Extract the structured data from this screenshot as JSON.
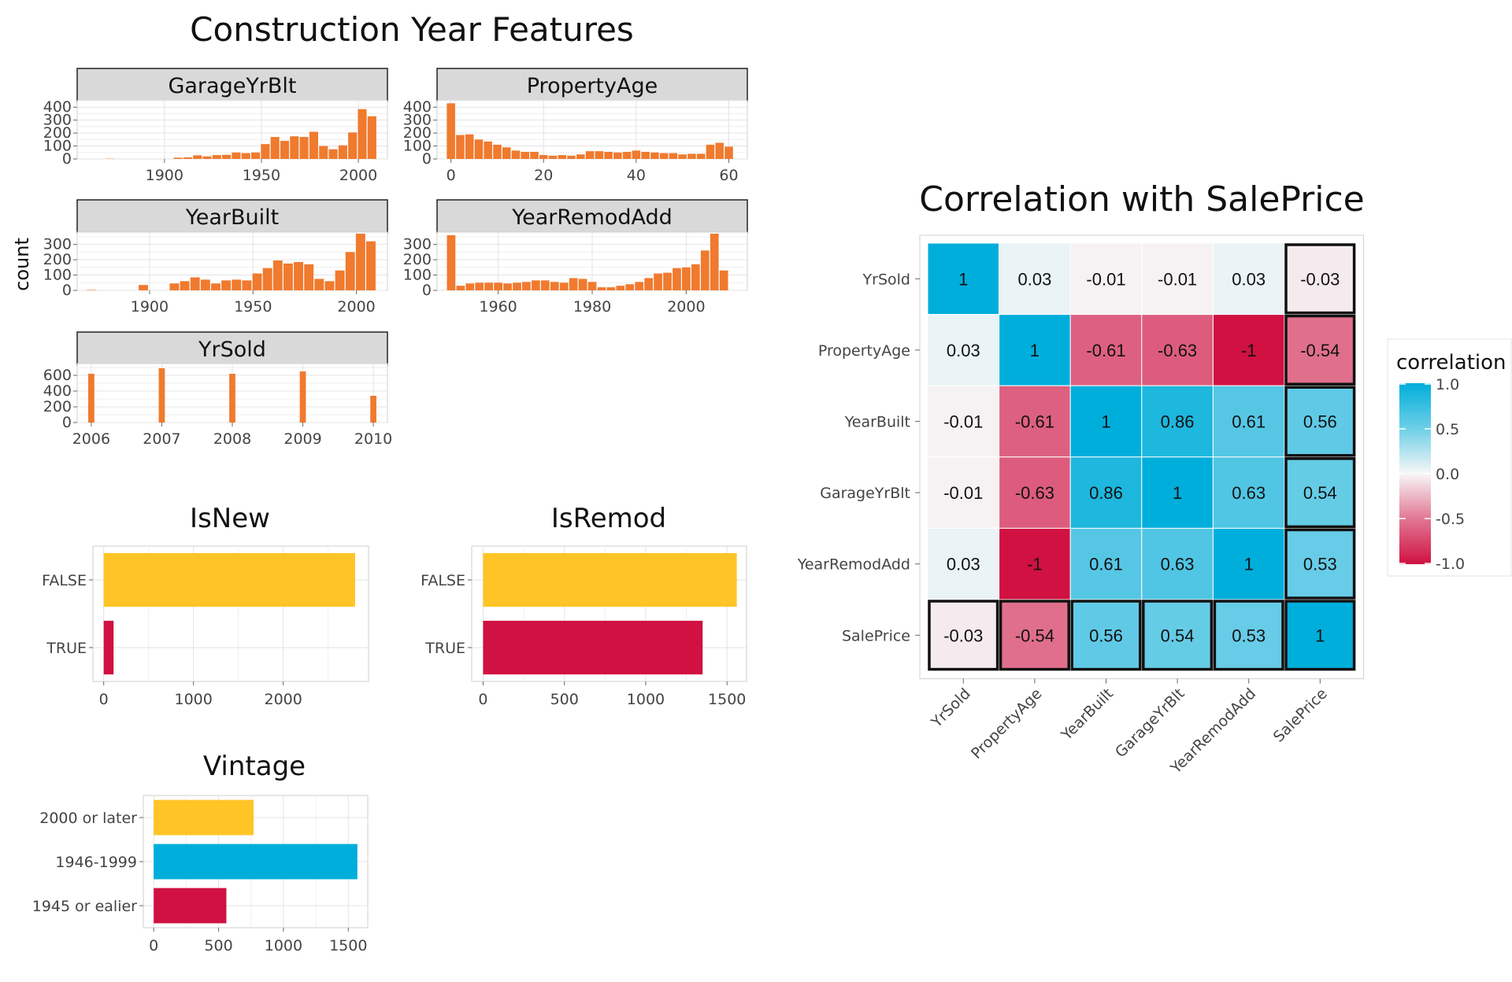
{
  "left_title": "Construction Year Features",
  "facet_ylabel": "count",
  "colors": {
    "hist": "#F07A2E",
    "yellow": "#FFC425",
    "crimson": "#D01142",
    "cyan": "#00AEDB",
    "strip": "#D9D9D9",
    "grid": "#E3E3E3"
  },
  "chart_data": [
    {
      "type": "bar",
      "id": "garageyrblt",
      "title": "GarageYrBlt",
      "xlim": [
        1855,
        2015
      ],
      "ylim": [
        0,
        450
      ],
      "xticks": [
        1900,
        1950,
        2000
      ],
      "yticks": [
        0,
        100,
        200,
        300,
        400
      ],
      "bin_width": 5,
      "x": [
        1872,
        1907,
        1912,
        1917,
        1922,
        1927,
        1932,
        1937,
        1942,
        1947,
        1952,
        1957,
        1962,
        1967,
        1972,
        1977,
        1982,
        1987,
        1992,
        1997,
        2002,
        2007
      ],
      "values": [
        2,
        10,
        12,
        28,
        20,
        30,
        32,
        50,
        45,
        50,
        115,
        170,
        140,
        175,
        170,
        210,
        100,
        75,
        105,
        205,
        385,
        330
      ]
    },
    {
      "type": "bar",
      "id": "propertyage",
      "title": "PropertyAge",
      "xlim": [
        -3,
        64
      ],
      "ylim": [
        0,
        450
      ],
      "xticks": [
        0,
        20,
        40,
        60
      ],
      "yticks": [
        0,
        100,
        200,
        300,
        400
      ],
      "bin_width": 2,
      "x": [
        0,
        2,
        4,
        6,
        8,
        10,
        12,
        14,
        16,
        18,
        20,
        22,
        24,
        26,
        28,
        30,
        32,
        34,
        36,
        38,
        40,
        42,
        44,
        46,
        48,
        50,
        52,
        54,
        56,
        58,
        60
      ],
      "values": [
        430,
        185,
        190,
        150,
        135,
        110,
        90,
        65,
        55,
        55,
        30,
        25,
        30,
        25,
        35,
        60,
        60,
        55,
        50,
        55,
        65,
        55,
        50,
        45,
        45,
        35,
        40,
        40,
        110,
        125,
        95
      ]
    },
    {
      "type": "bar",
      "id": "yearbuilt",
      "title": "YearBuilt",
      "xlim": [
        1865,
        2015
      ],
      "ylim": [
        0,
        380
      ],
      "xticks": [
        1900,
        1950,
        2000
      ],
      "yticks": [
        0,
        100,
        200,
        300
      ],
      "bin_width": 5,
      "x": [
        1872,
        1897,
        1912,
        1917,
        1922,
        1927,
        1932,
        1937,
        1942,
        1947,
        1952,
        1957,
        1962,
        1967,
        1972,
        1977,
        1982,
        1987,
        1992,
        1997,
        2002,
        2007
      ],
      "values": [
        3,
        35,
        45,
        60,
        85,
        70,
        45,
        65,
        70,
        65,
        110,
        145,
        195,
        175,
        185,
        170,
        75,
        60,
        130,
        250,
        370,
        320
      ]
    },
    {
      "type": "bar",
      "id": "yearremodadd",
      "title": "YearRemodAdd",
      "xlim": [
        1947,
        2013
      ],
      "ylim": [
        0,
        380
      ],
      "xticks": [
        1960,
        1980,
        2000
      ],
      "yticks": [
        0,
        100,
        200,
        300
      ],
      "bin_width": 2,
      "x": [
        1950,
        1952,
        1954,
        1956,
        1958,
        1960,
        1962,
        1964,
        1966,
        1968,
        1970,
        1972,
        1974,
        1976,
        1978,
        1980,
        1982,
        1984,
        1986,
        1988,
        1990,
        1992,
        1994,
        1996,
        1998,
        2000,
        2002,
        2004,
        2006,
        2008
      ],
      "values": [
        360,
        30,
        45,
        50,
        50,
        50,
        45,
        50,
        55,
        65,
        65,
        55,
        50,
        80,
        75,
        55,
        20,
        20,
        30,
        40,
        55,
        80,
        110,
        115,
        145,
        150,
        170,
        260,
        370,
        130
      ]
    },
    {
      "type": "bar",
      "id": "yrsold",
      "title": "YrSold",
      "xlim": [
        2005.8,
        2010.2
      ],
      "ylim": [
        0,
        750
      ],
      "xticks": [
        2006,
        2007,
        2008,
        2009,
        2010
      ],
      "yticks": [
        0,
        200,
        400,
        600
      ],
      "bin_width": 0.1,
      "x": [
        2006,
        2007,
        2008,
        2009,
        2010
      ],
      "values": [
        620,
        690,
        620,
        650,
        340
      ]
    },
    {
      "type": "bar",
      "id": "isnew",
      "orientation": "horizontal",
      "title": "IsNew",
      "categories": [
        "FALSE",
        "TRUE"
      ],
      "values": [
        2800,
        110
      ],
      "xlim": [
        -120,
        2950
      ],
      "xticks": [
        0,
        1000,
        2000
      ],
      "colors": [
        "#FFC425",
        "#D01142"
      ]
    },
    {
      "type": "bar",
      "id": "isremod",
      "orientation": "horizontal",
      "title": "IsRemod",
      "categories": [
        "FALSE",
        "TRUE"
      ],
      "values": [
        1560,
        1350
      ],
      "xlim": [
        -70,
        1620
      ],
      "xticks": [
        0,
        500,
        1000,
        1500
      ],
      "colors": [
        "#FFC425",
        "#D01142"
      ]
    },
    {
      "type": "bar",
      "id": "vintage",
      "orientation": "horizontal",
      "title": "Vintage",
      "categories": [
        "2000 or later",
        "1946-1999",
        "1945 or ealier"
      ],
      "values": [
        770,
        1570,
        560
      ],
      "xlim": [
        -80,
        1650
      ],
      "xticks": [
        0,
        500,
        1000,
        1500
      ],
      "colors": [
        "#FFC425",
        "#00AEDB",
        "#D01142"
      ]
    },
    {
      "type": "heatmap",
      "id": "correlation",
      "title": "Correlation with SalePrice",
      "rows": [
        "YrSold",
        "PropertyAge",
        "YearBuilt",
        "GarageYrBlt",
        "YearRemodAdd",
        "SalePrice"
      ],
      "columns": [
        "YrSold",
        "PropertyAge",
        "YearBuilt",
        "GarageYrBlt",
        "YearRemodAdd",
        "SalePrice"
      ],
      "values": [
        [
          1,
          0.03,
          -0.01,
          -0.01,
          0.03,
          -0.03
        ],
        [
          0.03,
          1,
          -0.61,
          -0.63,
          -1,
          -0.54
        ],
        [
          -0.01,
          -0.61,
          1,
          0.86,
          0.61,
          0.56
        ],
        [
          -0.01,
          -0.63,
          0.86,
          1,
          0.63,
          0.54
        ],
        [
          0.03,
          -1,
          0.61,
          0.63,
          1,
          0.53
        ],
        [
          -0.03,
          -0.54,
          0.56,
          0.54,
          0.53,
          1
        ]
      ],
      "highlight": "SalePrice row and column outlined",
      "legend": {
        "title": "correlation",
        "ticks": [
          "1.0",
          "0.5",
          "0.0",
          "-0.5",
          "-1.0"
        ],
        "placement": "right"
      },
      "color_scale": {
        "low": "#D01142",
        "mid": "#F7F7F7",
        "high": "#00AEDB"
      }
    }
  ]
}
